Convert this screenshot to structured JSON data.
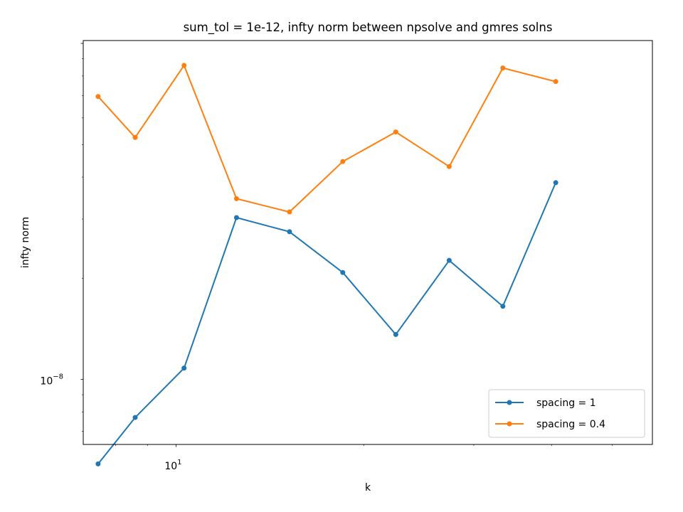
{
  "chart_data": {
    "type": "line",
    "title": "sum_tol = 1e-12, infty norm between npsolve and gmres solns",
    "xlabel": "k",
    "ylabel": "infty norm",
    "xscale": "log",
    "yscale": "log",
    "xlim": [
      7.1,
      58
    ],
    "ylim": [
      6.4e-09,
      1.02e-07
    ],
    "x_tick_labels": [
      {
        "value": 10,
        "base": "10",
        "exp": "1"
      }
    ],
    "y_tick_labels": [
      {
        "value": 1e-08,
        "base": "10",
        "exp": "−8"
      }
    ],
    "grid": false,
    "legend_position": "lower-right",
    "x": [
      7.5,
      8.6,
      10.3,
      12.5,
      15.2,
      18.5,
      22.5,
      27.4,
      33.4,
      40.6
    ],
    "series": [
      {
        "name": "spacing = 1",
        "color": "#1f77b4",
        "values": [
          5.6e-09,
          7.7e-09,
          1.08e-08,
          3.03e-08,
          2.75e-08,
          2.08e-08,
          1.36e-08,
          2.26e-08,
          1.65e-08,
          3.85e-08
        ]
      },
      {
        "name": "spacing = 0.4",
        "color": "#ff7f0e",
        "values": [
          6.95e-08,
          5.25e-08,
          8.6e-08,
          3.45e-08,
          3.15e-08,
          4.45e-08,
          5.45e-08,
          4.3e-08,
          8.45e-08,
          7.7e-08
        ]
      }
    ]
  }
}
